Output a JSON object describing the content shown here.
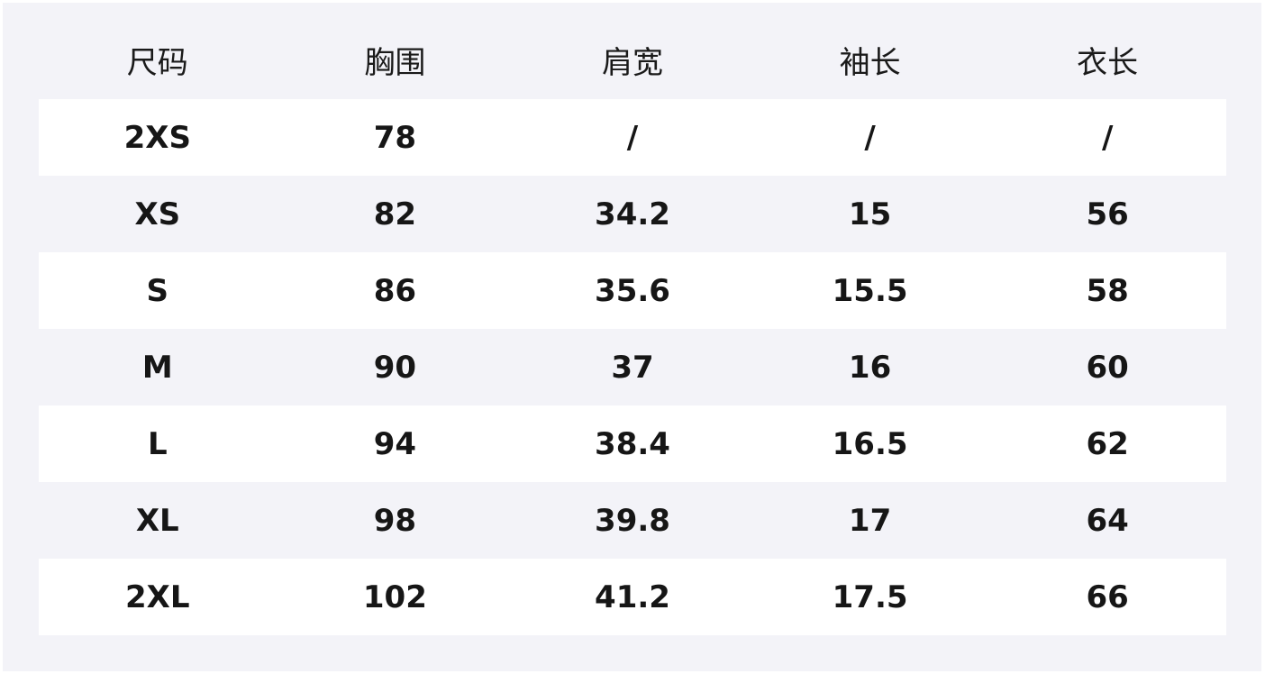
{
  "table": {
    "headers": [
      "尺码",
      "胸围",
      "肩宽",
      "袖长",
      "衣长"
    ],
    "rows": [
      [
        "2XS",
        "78",
        "/",
        "/",
        "/"
      ],
      [
        "XS",
        "82",
        "34.2",
        "15",
        "56"
      ],
      [
        "S",
        "86",
        "35.6",
        "15.5",
        "58"
      ],
      [
        "M",
        "90",
        "37",
        "16",
        "60"
      ],
      [
        "L",
        "94",
        "38.4",
        "16.5",
        "62"
      ],
      [
        "XL",
        "98",
        "39.8",
        "17",
        "64"
      ],
      [
        "2XL",
        "102",
        "41.2",
        "17.5",
        "66"
      ]
    ]
  },
  "colors": {
    "panel": "#f3f3f8",
    "row_alt": "#ffffff",
    "text": "#161616"
  }
}
